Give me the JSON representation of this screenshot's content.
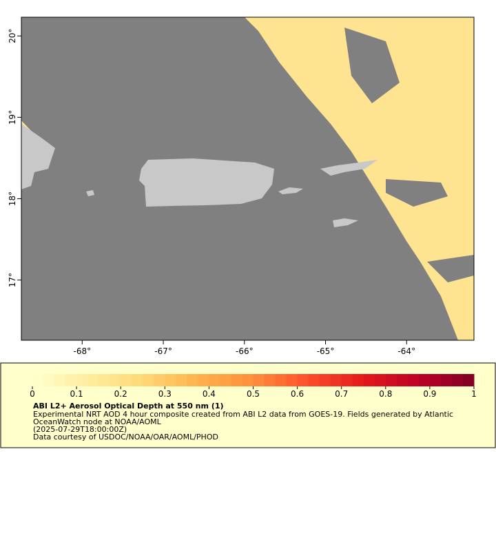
{
  "map": {
    "xlim": [
      -68.75,
      -63.17
    ],
    "ylim": [
      16.26,
      20.23
    ],
    "lon_ticks": [
      {
        "value": -68,
        "label": "-68°"
      },
      {
        "value": -67,
        "label": "-67°"
      },
      {
        "value": -66,
        "label": "-66°"
      },
      {
        "value": -65,
        "label": "-65°"
      },
      {
        "value": -64,
        "label": "-64°"
      }
    ],
    "lat_ticks": [
      {
        "value": 17,
        "label": "17°"
      },
      {
        "value": 18,
        "label": "18°"
      },
      {
        "value": 19,
        "label": "19°"
      },
      {
        "value": 20,
        "label": "20°"
      }
    ],
    "ocean_color": "#808080",
    "land_color": "#c8c8c8",
    "aerosol_color": "#fee391"
  },
  "colorbar": {
    "lim": [
      0,
      1
    ],
    "ticks": [
      0,
      0.1,
      0.2,
      0.3,
      0.4,
      0.5,
      0.6,
      0.7,
      0.8,
      0.9,
      1
    ],
    "steps": 40,
    "colors": [
      "#ffffcc",
      "#ffeda0",
      "#fed976",
      "#feb24c",
      "#fd8d3c",
      "#fc4e2a",
      "#e31a1c",
      "#bd0026",
      "#800026"
    ]
  },
  "legend": {
    "title": "ABI L2+ Aerosol Optical Depth at 550 nm (1)",
    "lines": [
      "Experimental NRT AOD 4 hour composite created from ABI L2 data from GOES-19. Fields generated by Atlantic",
      "OceanWatch node at NOAA/AOML",
      "(2025-07-29T18:00:00Z)",
      "Data courtesy of USDOC/NOAA/OAR/AOML/PHOD"
    ]
  }
}
